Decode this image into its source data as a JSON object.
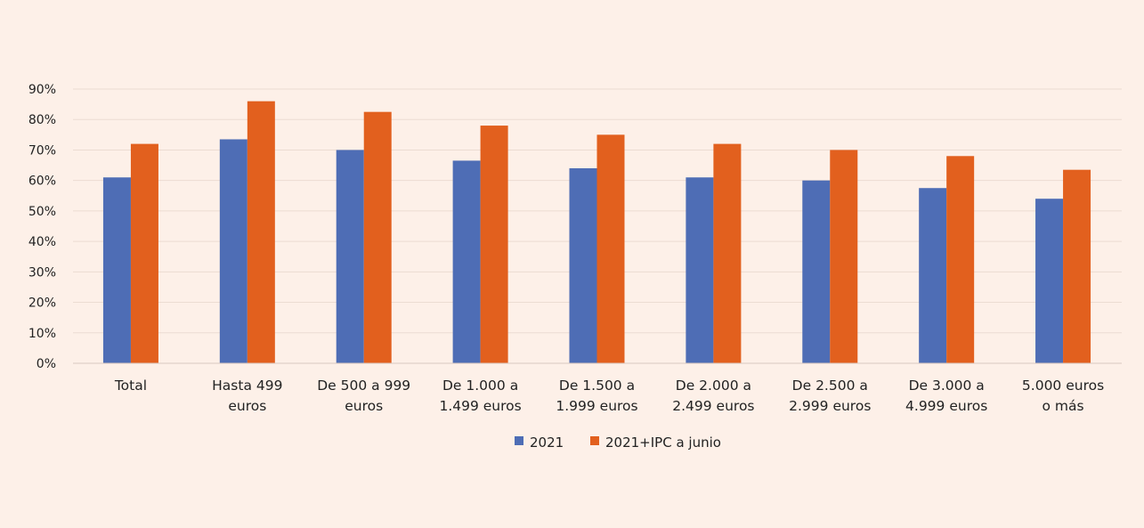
{
  "chart_data": {
    "type": "bar",
    "title": "",
    "xlabel": "",
    "ylabel": "",
    "ylim": [
      0,
      90
    ],
    "yticks": [
      "0%",
      "10%",
      "20%",
      "30%",
      "40%",
      "50%",
      "60%",
      "70%",
      "80%",
      "90%"
    ],
    "grid": true,
    "legend_position": "bottom",
    "categories": [
      [
        "Total"
      ],
      [
        "Hasta 499",
        "euros"
      ],
      [
        "De 500 a 999",
        "euros"
      ],
      [
        "De 1.000 a",
        "1.499 euros"
      ],
      [
        "De 1.500 a",
        "1.999 euros"
      ],
      [
        "De 2.000 a",
        "2.499 euros"
      ],
      [
        "De 2.500 a",
        "2.999 euros"
      ],
      [
        "De 3.000 a",
        "4.999 euros"
      ],
      [
        "5.000 euros",
        "o más"
      ]
    ],
    "series": [
      {
        "name": "2021",
        "color": "#4e6db5",
        "values": [
          61,
          73.5,
          70,
          66.5,
          64,
          61,
          60,
          57.5,
          54
        ]
      },
      {
        "name": "2021+IPC a junio",
        "color": "#e2601e",
        "values": [
          72,
          86,
          82.5,
          78,
          75,
          72,
          70,
          68,
          63.5
        ]
      }
    ]
  }
}
